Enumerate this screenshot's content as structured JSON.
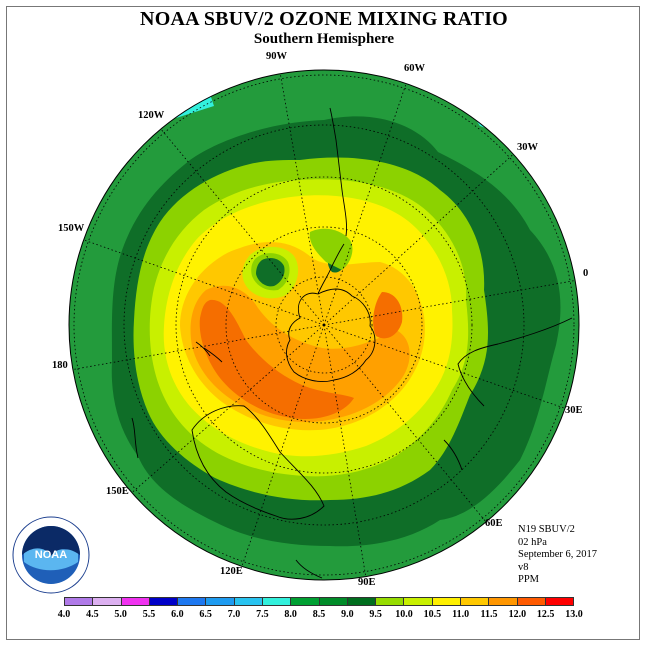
{
  "title": "NOAA SBUV/2 OZONE MIXING RATIO",
  "subtitle": "Southern Hemisphere",
  "longitude_labels": [
    "90W",
    "60W",
    "30W",
    "0",
    "30E",
    "60E",
    "90E",
    "120E",
    "150E",
    "180",
    "150W",
    "120W"
  ],
  "info": {
    "satellite": "N19 SBUV/2",
    "level": "02 hPa",
    "date": "September 6, 2017",
    "version": "v8",
    "units": "PPM"
  },
  "logo_text": "NOAA",
  "colorbar": {
    "ticks": [
      "4.0",
      "4.5",
      "5.0",
      "5.5",
      "6.0",
      "6.5",
      "7.0",
      "7.5",
      "8.0",
      "8.5",
      "9.0",
      "9.5",
      "10.0",
      "10.5",
      "11.0",
      "11.5",
      "12.0",
      "12.5",
      "13.0"
    ],
    "colors": [
      "#b07ae8",
      "#dcb0f0",
      "#f032f0",
      "#0000c8",
      "#1e78f0",
      "#1e9bf0",
      "#28c3f0",
      "#32f0dc",
      "#00a032",
      "#008c28",
      "#006e1e",
      "#96dc00",
      "#c8f000",
      "#fff000",
      "#ffc800",
      "#ff9600",
      "#ff5a00",
      "#ff0000",
      "#8c5a3c"
    ]
  },
  "map_colors": {
    "c8_5": "#239b3c",
    "c9_0": "#0f6e28",
    "c9_5": "#8cd200",
    "c10_0": "#c8f000",
    "c10_5": "#fff200",
    "c11_0": "#ffc800",
    "c11_5": "#ffa000",
    "c12_0": "#f56e00",
    "cyan": "#32f0dc"
  }
}
